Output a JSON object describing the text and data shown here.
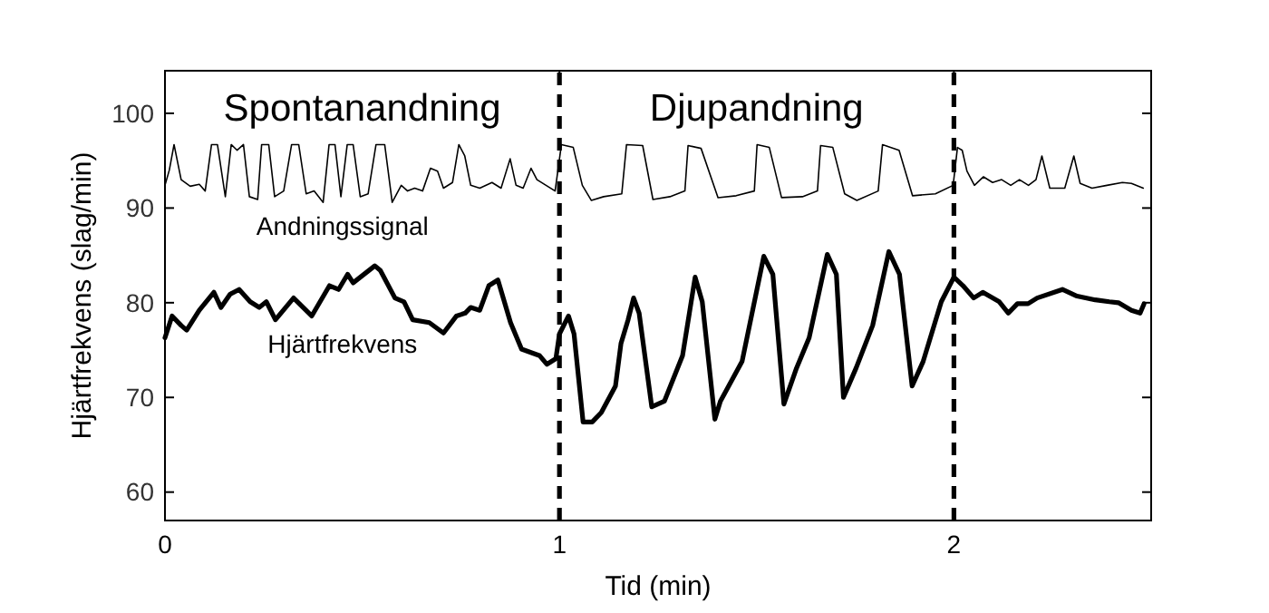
{
  "chart_data": {
    "type": "line",
    "xlabel": "Tid (min)",
    "ylabel": "Hjärtfrekvens (slag/min)",
    "xlim": [
      0,
      2.5
    ],
    "ylim": [
      57,
      104.5
    ],
    "xticks": [
      0,
      1,
      2
    ],
    "yticks": [
      60,
      70,
      80,
      90,
      100
    ],
    "grid": false,
    "line_style": "solid",
    "marker": "none",
    "annotations": [
      "Spontanandning",
      "Djupandning"
    ],
    "ref_lines": [
      {
        "axis": "x",
        "value": 1,
        "color": "#000000",
        "line_style": "dashed"
      },
      {
        "axis": "x",
        "value": 2,
        "color": "#000000",
        "line_style": "dashed"
      }
    ],
    "series": [
      {
        "name": "Andningssignal",
        "color": "#000000",
        "x": [
          0,
          0.011,
          0.023,
          0.041,
          0.064,
          0.087,
          0.102,
          0.118,
          0.133,
          0.153,
          0.168,
          0.183,
          0.199,
          0.214,
          0.235,
          0.245,
          0.263,
          0.278,
          0.301,
          0.321,
          0.339,
          0.358,
          0.378,
          0.401,
          0.416,
          0.431,
          0.446,
          0.462,
          0.477,
          0.495,
          0.515,
          0.535,
          0.557,
          0.576,
          0.599,
          0.615,
          0.633,
          0.653,
          0.673,
          0.691,
          0.706,
          0.729,
          0.745,
          0.76,
          0.775,
          0.798,
          0.829,
          0.852,
          0.875,
          0.89,
          0.908,
          0.928,
          0.943,
          0.966,
          0.989,
          1.005,
          1.035,
          1.058,
          1.081,
          1.112,
          1.158,
          1.17,
          1.211,
          1.237,
          1.28,
          1.318,
          1.326,
          1.359,
          1.402,
          1.448,
          1.494,
          1.501,
          1.532,
          1.563,
          1.616,
          1.654,
          1.662,
          1.693,
          1.723,
          1.754,
          1.808,
          1.819,
          1.861,
          1.895,
          1.953,
          1.998,
          2.009,
          2.021,
          2.033,
          2.052,
          2.075,
          2.098,
          2.121,
          2.144,
          2.166,
          2.189,
          2.208,
          2.223,
          2.243,
          2.281,
          2.304,
          2.32,
          2.35,
          2.388,
          2.427,
          2.45,
          2.48
        ],
        "values": [
          92.4,
          94.0,
          96.7,
          93.0,
          92.3,
          92.5,
          91.8,
          96.7,
          96.7,
          91.2,
          96.7,
          96.1,
          96.7,
          91.2,
          90.9,
          96.7,
          96.7,
          91.2,
          91.8,
          96.7,
          96.7,
          91.5,
          91.8,
          90.6,
          96.7,
          96.7,
          91.2,
          96.7,
          96.7,
          91.2,
          91.5,
          96.7,
          96.7,
          90.6,
          92.4,
          91.8,
          92.1,
          91.8,
          94.2,
          93.9,
          92.1,
          92.7,
          96.7,
          95.5,
          92.4,
          92.1,
          92.7,
          92.1,
          95.2,
          92.4,
          92.1,
          94.2,
          93.0,
          92.4,
          91.8,
          96.7,
          96.4,
          92.4,
          90.8,
          91.2,
          91.5,
          96.7,
          96.6,
          90.9,
          91.2,
          91.8,
          96.6,
          96.3,
          91.1,
          91.3,
          91.8,
          96.7,
          96.4,
          91.1,
          91.2,
          91.8,
          96.6,
          96.4,
          91.5,
          90.8,
          91.8,
          96.7,
          96.1,
          91.3,
          91.5,
          92.4,
          96.4,
          96.1,
          93.9,
          92.4,
          93.3,
          92.7,
          93.0,
          92.4,
          93.0,
          92.4,
          93.0,
          95.5,
          92.1,
          92.1,
          95.5,
          92.6,
          92.1,
          92.4,
          92.7,
          92.6,
          92.1
        ]
      },
      {
        "name": "Hjärtfrekvens",
        "color": "#000000",
        "x": [
          0,
          0.018,
          0.041,
          0.055,
          0.087,
          0.124,
          0.142,
          0.165,
          0.188,
          0.216,
          0.239,
          0.257,
          0.28,
          0.326,
          0.372,
          0.417,
          0.44,
          0.463,
          0.477,
          0.532,
          0.546,
          0.583,
          0.606,
          0.628,
          0.67,
          0.706,
          0.739,
          0.761,
          0.775,
          0.798,
          0.821,
          0.844,
          0.876,
          0.904,
          0.95,
          0.968,
          0.991,
          1.0,
          1.023,
          1.037,
          1.06,
          1.083,
          1.106,
          1.142,
          1.156,
          1.174,
          1.188,
          1.202,
          1.234,
          1.266,
          1.312,
          1.344,
          1.362,
          1.394,
          1.408,
          1.463,
          1.518,
          1.541,
          1.569,
          1.601,
          1.633,
          1.679,
          1.702,
          1.72,
          1.752,
          1.794,
          1.835,
          1.862,
          1.894,
          1.922,
          1.968,
          2.0,
          2.023,
          2.05,
          2.073,
          2.115,
          2.138,
          2.161,
          2.188,
          2.211,
          2.275,
          2.312,
          2.358,
          2.394,
          2.417,
          2.45,
          2.472,
          2.482
        ],
        "values": [
          76.3,
          78.6,
          77.6,
          77.1,
          79.2,
          81.1,
          79.5,
          80.9,
          81.4,
          80.1,
          79.5,
          80.1,
          78.2,
          80.5,
          78.6,
          81.8,
          81.4,
          83.0,
          82.1,
          83.9,
          83.4,
          80.5,
          80.1,
          78.2,
          77.9,
          76.8,
          78.6,
          78.9,
          79.5,
          79.2,
          81.8,
          82.4,
          77.9,
          75.1,
          74.4,
          73.5,
          74.1,
          76.7,
          78.6,
          76.7,
          67.4,
          67.4,
          68.4,
          71.2,
          75.7,
          78.2,
          80.5,
          78.9,
          69.0,
          69.6,
          74.4,
          82.7,
          80.1,
          67.7,
          69.6,
          73.8,
          84.9,
          83.0,
          69.3,
          73.1,
          76.3,
          85.1,
          83.0,
          70.0,
          73.1,
          77.6,
          85.4,
          83.0,
          71.2,
          73.8,
          80.1,
          82.7,
          81.8,
          80.5,
          81.1,
          80.1,
          78.9,
          79.9,
          79.9,
          80.5,
          81.4,
          80.7,
          80.3,
          80.1,
          80.0,
          79.2,
          78.9,
          79.9
        ]
      }
    ]
  }
}
